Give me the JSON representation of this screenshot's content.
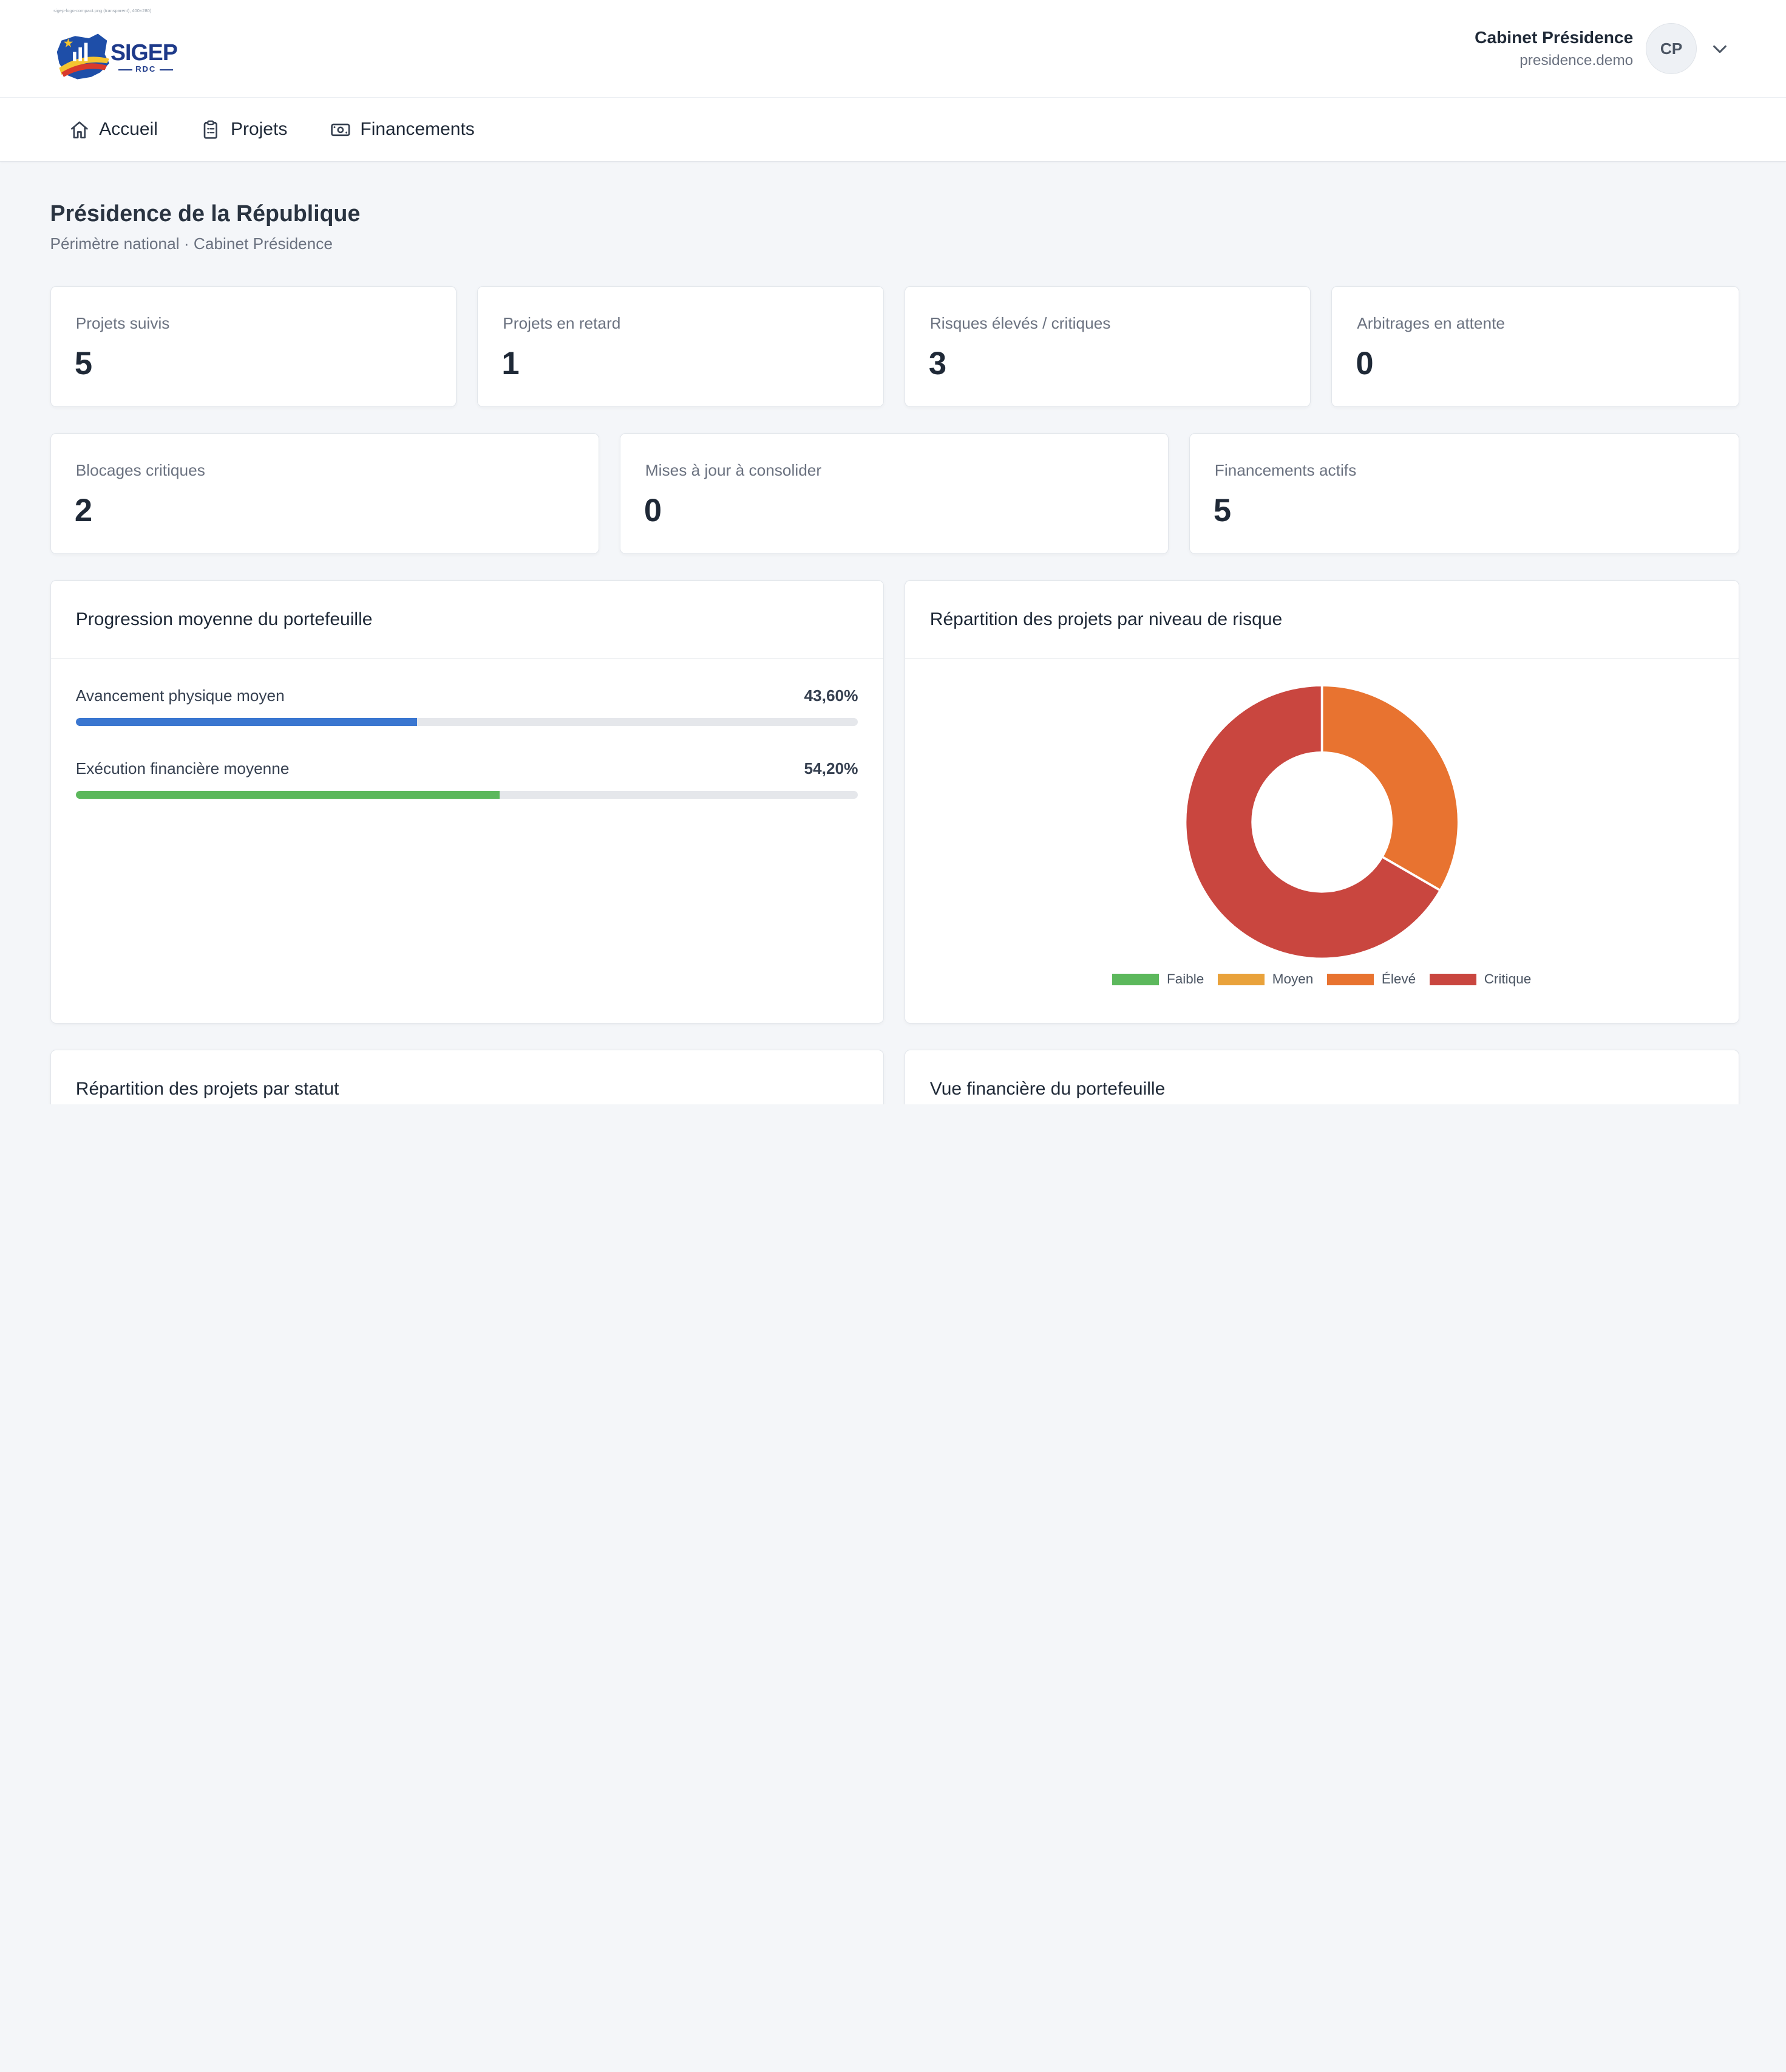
{
  "header": {
    "logo_caption": "sigep-logo-compact.png (transparent), 400×280)",
    "logo_word": "SIGEP",
    "logo_sub": "RDC",
    "user_name": "Cabinet Présidence",
    "user_email": "presidence.demo",
    "user_initials": "CP"
  },
  "nav": {
    "items": [
      {
        "label": "Accueil",
        "icon": "home-icon"
      },
      {
        "label": "Projets",
        "icon": "clipboard-icon"
      },
      {
        "label": "Financements",
        "icon": "banknote-icon"
      }
    ]
  },
  "page": {
    "title": "Présidence de la République",
    "subtitle": "Périmètre national · Cabinet Présidence"
  },
  "stats_row1": [
    {
      "label": "Projets suivis",
      "value": "5"
    },
    {
      "label": "Projets en retard",
      "value": "1"
    },
    {
      "label": "Risques élevés / critiques",
      "value": "3"
    },
    {
      "label": "Arbitrages en attente",
      "value": "0"
    }
  ],
  "stats_row2": [
    {
      "label": "Blocages critiques",
      "value": "2"
    },
    {
      "label": "Mises à jour à consolider",
      "value": "0"
    },
    {
      "label": "Financements actifs",
      "value": "5"
    }
  ],
  "progress_panel": {
    "title": "Progression moyenne du portefeuille",
    "bars": [
      {
        "label": "Avancement physique moyen",
        "value_text": "43,60%",
        "fraction": 0.436,
        "color": "#3a76d0"
      },
      {
        "label": "Exécution financière moyenne",
        "value_text": "54,20%",
        "fraction": 0.542,
        "color": "#5cb85c"
      }
    ]
  },
  "risk_panel": {
    "title": "Répartition des projets par niveau de risque"
  },
  "bottom_panels": {
    "left_title": "Répartition des projets par statut",
    "right_title": "Vue financière du portefeuille"
  },
  "chart_data": {
    "type": "pie",
    "subtype": "doughnut",
    "categories": [
      "Faible",
      "Moyen",
      "Élevé",
      "Critique"
    ],
    "values": [
      0,
      0,
      1,
      2
    ],
    "colors": [
      "#5cb85c",
      "#e9a23b",
      "#e87330",
      "#c9463f"
    ],
    "legend_position": "bottom"
  }
}
